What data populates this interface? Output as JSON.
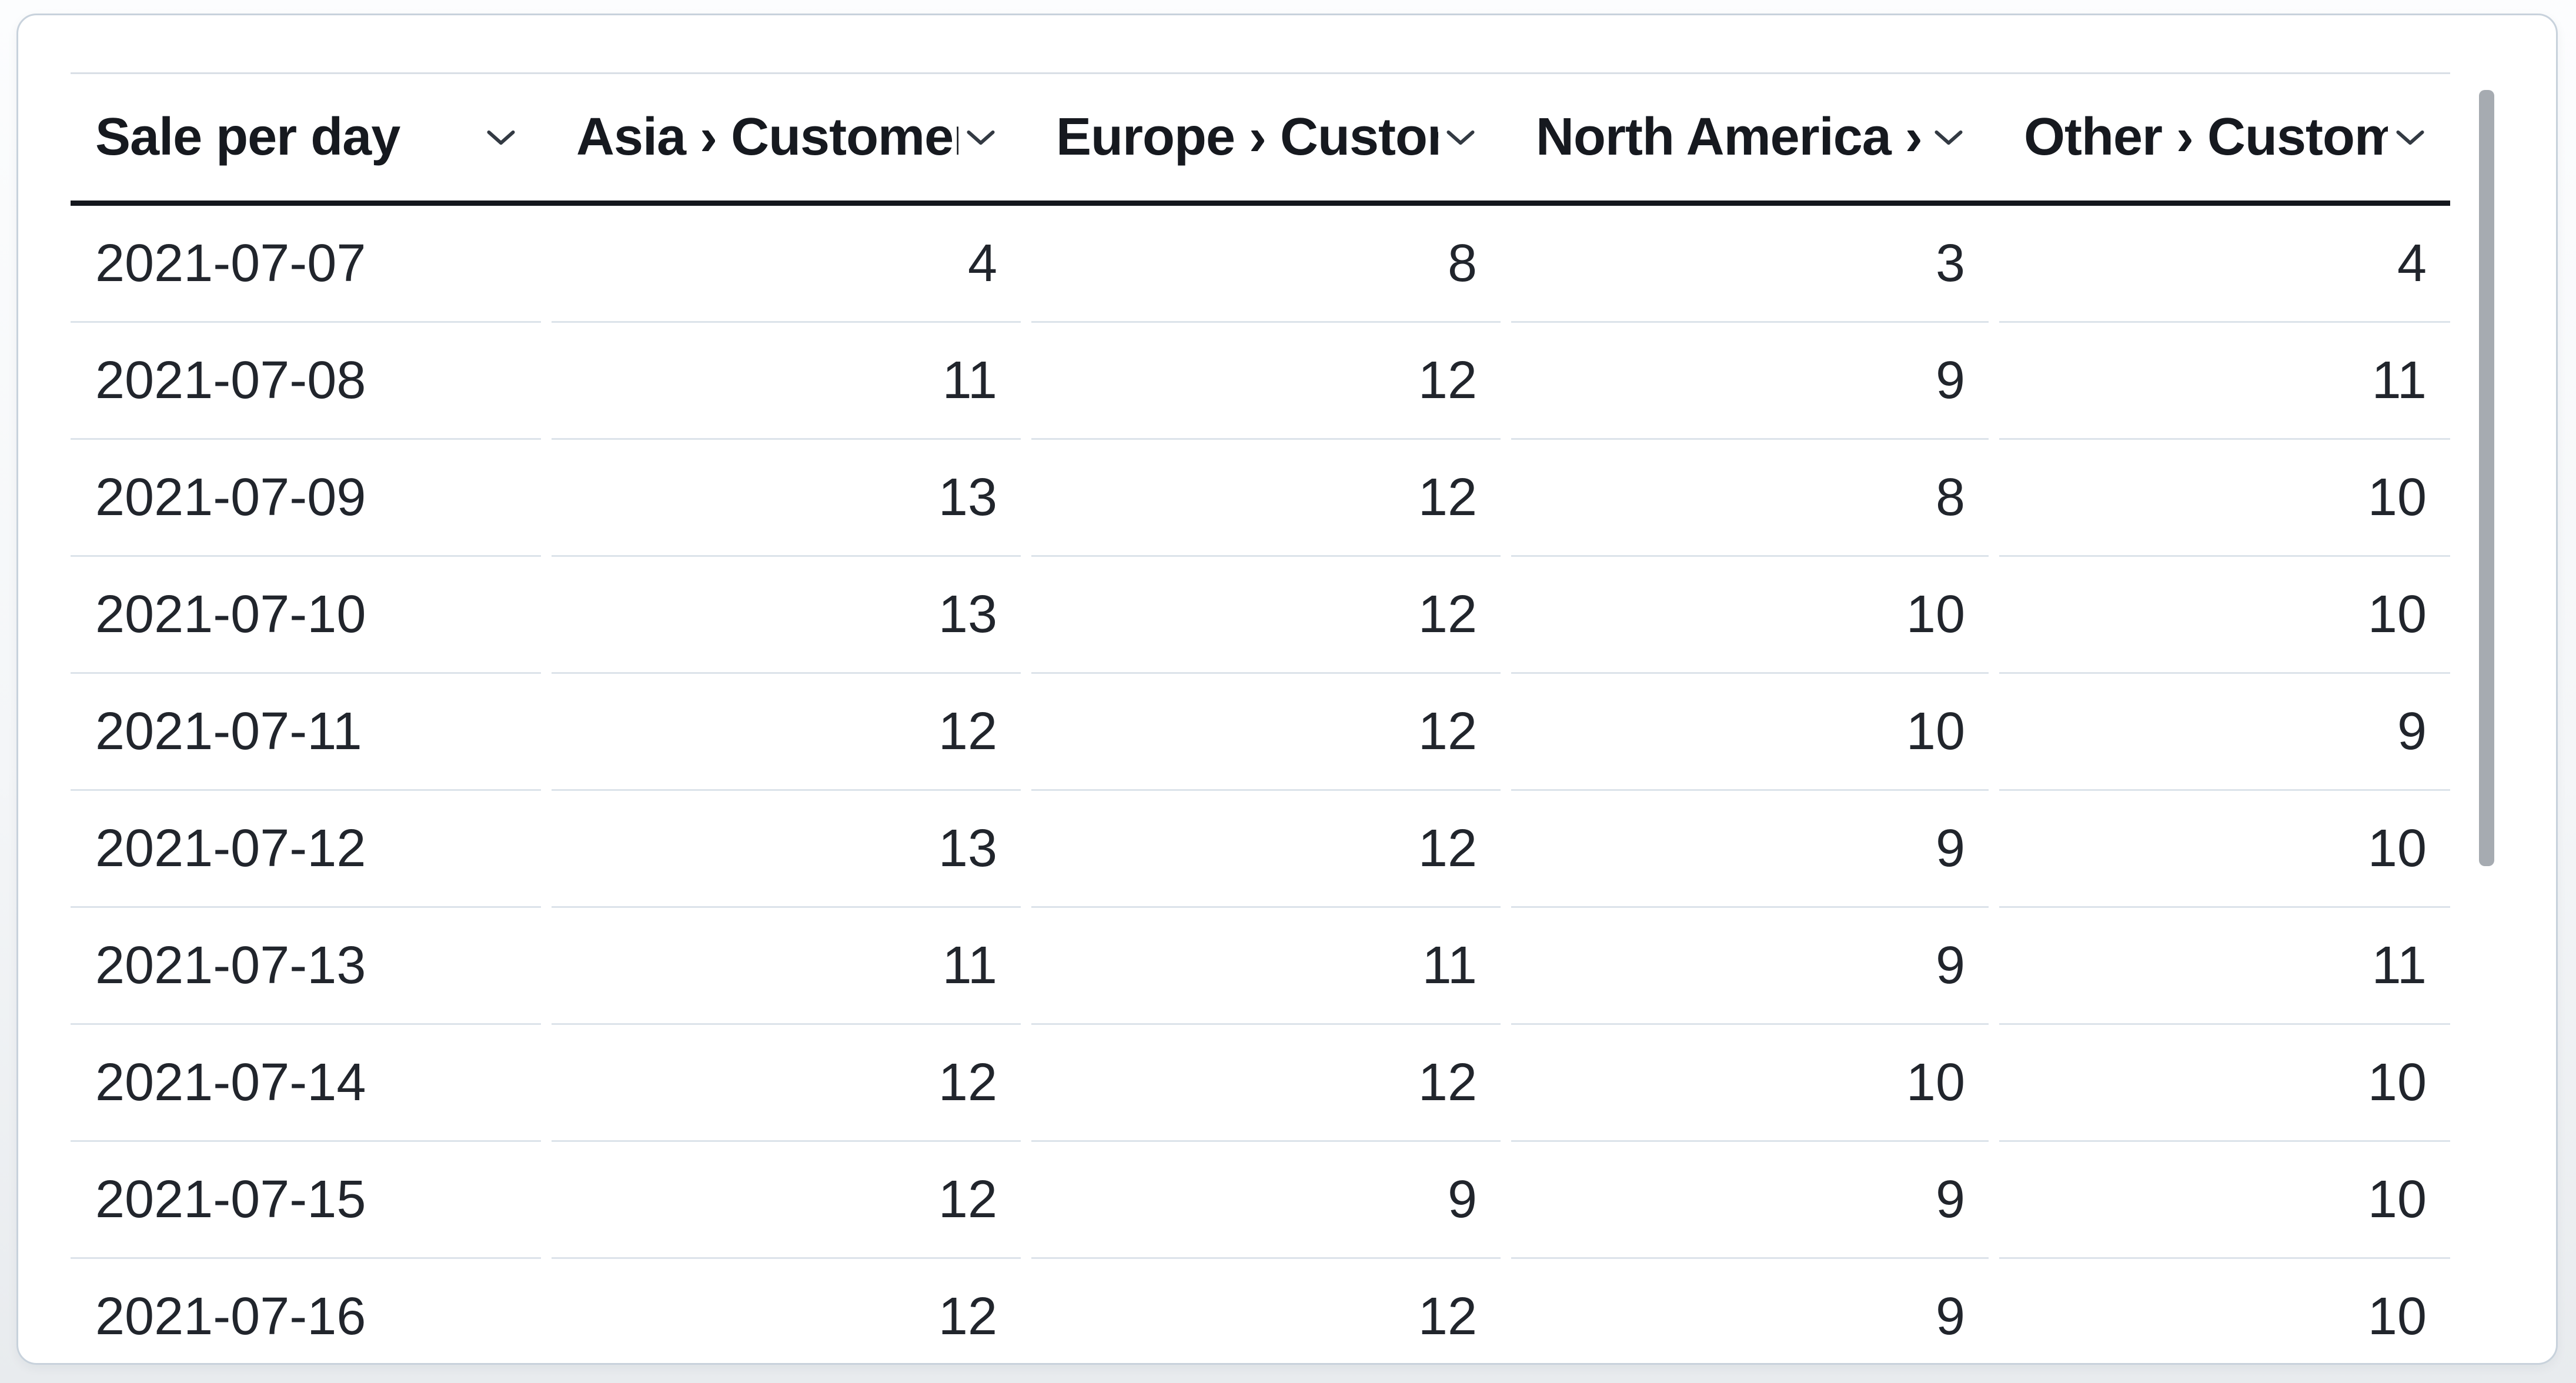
{
  "table": {
    "title": "Sale per day",
    "columns": [
      {
        "label": "Sale per day",
        "align": "left"
      },
      {
        "label": "Asia › Customers",
        "align": "right"
      },
      {
        "label": "Europe › Customers",
        "align": "right"
      },
      {
        "label": "North America › C",
        "align": "right"
      },
      {
        "label": "Other › Customers",
        "align": "right"
      }
    ],
    "rows": [
      {
        "date": "2021-07-07",
        "values": [
          4,
          8,
          3,
          4
        ]
      },
      {
        "date": "2021-07-08",
        "values": [
          11,
          12,
          9,
          11
        ]
      },
      {
        "date": "2021-07-09",
        "values": [
          13,
          12,
          8,
          10
        ]
      },
      {
        "date": "2021-07-10",
        "values": [
          13,
          12,
          10,
          10
        ]
      },
      {
        "date": "2021-07-11",
        "values": [
          12,
          12,
          10,
          9
        ]
      },
      {
        "date": "2021-07-12",
        "values": [
          13,
          12,
          9,
          10
        ]
      },
      {
        "date": "2021-07-13",
        "values": [
          11,
          11,
          9,
          11
        ]
      },
      {
        "date": "2021-07-14",
        "values": [
          12,
          12,
          10,
          10
        ]
      },
      {
        "date": "2021-07-15",
        "values": [
          12,
          9,
          9,
          10
        ]
      },
      {
        "date": "2021-07-16",
        "values": [
          12,
          12,
          9,
          10
        ]
      }
    ]
  },
  "icons": {
    "header_sort": "chevron-down-icon"
  },
  "colors": {
    "card_background": "#ffffff",
    "card_border": "#c8d2dc",
    "header_text": "#16191f",
    "data_text": "#21252c",
    "header_underline": "#14171d",
    "row_separator": "#dce3ea",
    "table_top_border": "#d9dfe6",
    "scrollbar_thumb": "#a6abb1",
    "chevron": "#333a43"
  }
}
